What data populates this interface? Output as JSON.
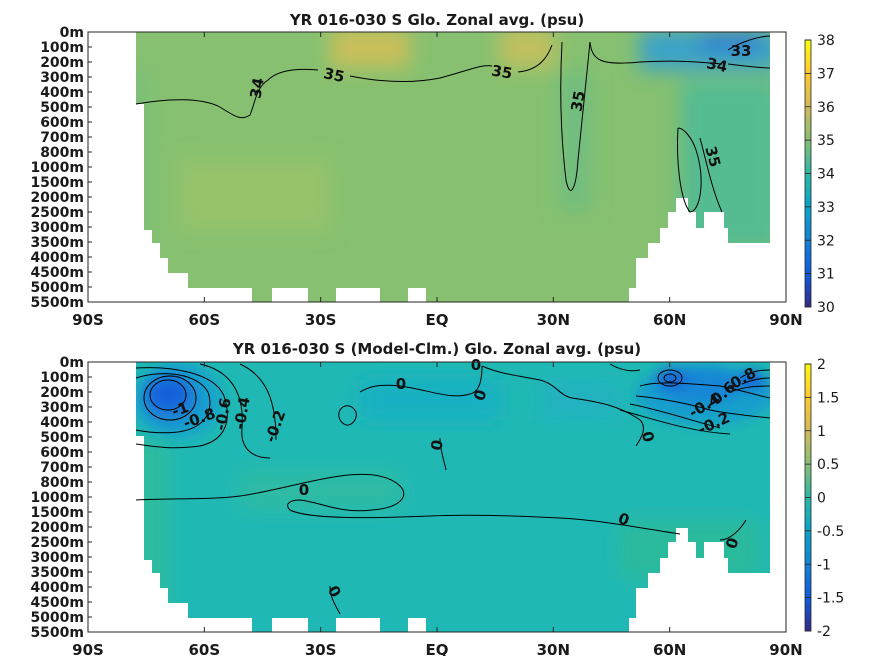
{
  "colormap": [
    "#352a87",
    "#0f5cdd",
    "#1481d6",
    "#06a4ca",
    "#2eb7a4",
    "#87bf77",
    "#d1bb59",
    "#fec832",
    "#f9fb0e"
  ],
  "colors": {
    "land": "#ffffff",
    "contour": "#000000",
    "frame": "#262626"
  },
  "x_ticks": [
    "90S",
    "60S",
    "30S",
    "EQ",
    "30N",
    "60N",
    "90N"
  ],
  "y_ticks": [
    "0m",
    "100m",
    "200m",
    "300m",
    "400m",
    "500m",
    "600m",
    "700m",
    "800m",
    "1000m",
    "1500m",
    "2000m",
    "2500m",
    "3000m",
    "3500m",
    "4000m",
    "4500m",
    "5000m",
    "5500m"
  ],
  "panels": [
    {
      "title": "YR 016-030 S Glo. Zonal avg. (psu)",
      "colorbar": {
        "min": 30,
        "max": 38,
        "ticks": [
          "30",
          "31",
          "32",
          "33",
          "34",
          "35",
          "36",
          "37",
          "38"
        ]
      },
      "contour_labels": [
        "35",
        "35",
        "34",
        "34",
        "33",
        "35",
        "35"
      ]
    },
    {
      "title": "YR 016-030 S (Model-Clm.) Glo. Zonal avg. (psu)",
      "colorbar": {
        "min": -2,
        "max": 2,
        "ticks": [
          "-2",
          "-1.5",
          "-1",
          "-0.5",
          "0",
          "0.5",
          "1",
          "1.5",
          "2"
        ]
      },
      "contour_labels": [
        "0",
        "0",
        "0",
        "0",
        "0",
        "0",
        "0",
        "0",
        "0",
        "-1",
        "-0.8",
        "-0.6",
        "-0.4",
        "-0.2",
        "-0.8",
        "-0.6",
        "-0.4",
        "-0.2"
      ]
    }
  ],
  "chart_data": [
    {
      "type": "heatmap",
      "title": "YR 016-030 S Glo. Zonal avg. (psu)",
      "xlabel": "",
      "ylabel": "",
      "x_range": [
        "90S",
        "90N"
      ],
      "y_range": [
        "0m",
        "5500m"
      ],
      "value_range": [
        30,
        38
      ],
      "contour_levels": [
        33,
        34,
        35
      ],
      "description_values": {
        "surface_subtropical_max": 36.5,
        "deep_ocean": 34.7,
        "arctic_surface": 32.5,
        "antarctic_surface": 34.0
      }
    },
    {
      "type": "heatmap",
      "title": "YR 016-030 S (Model-Clm.) Glo. Zonal avg. (psu)",
      "xlabel": "",
      "ylabel": "",
      "x_range": [
        "90S",
        "90N"
      ],
      "y_range": [
        "0m",
        "5500m"
      ],
      "value_range": [
        -2,
        2
      ],
      "contour_levels": [
        -1,
        -0.8,
        -0.6,
        -0.4,
        -0.2,
        0
      ],
      "description_values": {
        "southern_ocean_min": -1.2,
        "arctic_min": -1.0,
        "interior_typical": 0.1
      }
    }
  ]
}
